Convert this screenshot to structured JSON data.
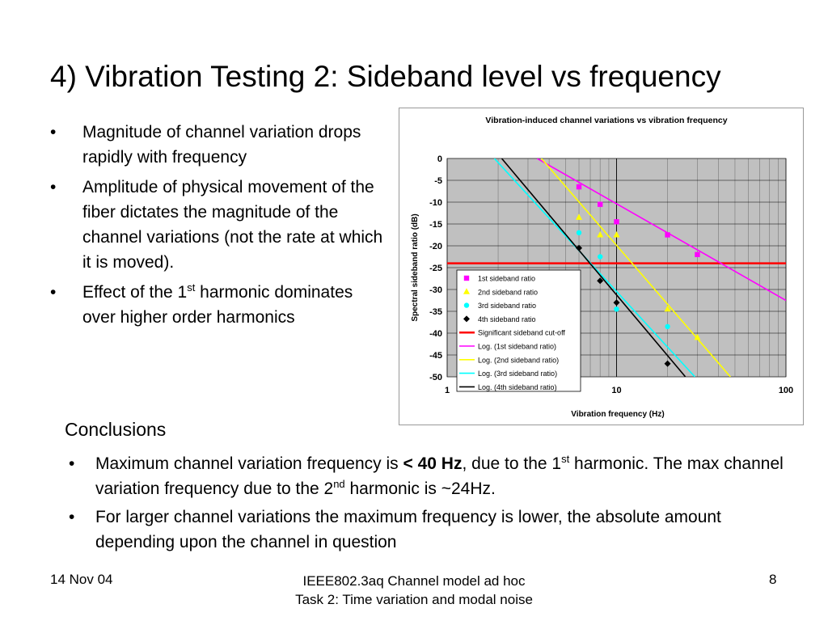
{
  "title": "4) Vibration Testing 2: Sideband level vs frequency",
  "bullets": [
    {
      "text": "Magnitude of channel variation drops rapidly with frequency"
    },
    {
      "text": "Amplitude of physical movement of the fiber dictates the magnitude of the channel variations (not the rate at which it is moved)."
    },
    {
      "pre": "Effect of the 1",
      "sup": "st",
      "post": "  harmonic dominates over higher order harmonics"
    }
  ],
  "bullet_glyph": "•",
  "conclusions": {
    "heading": "Conclusions",
    "items": [
      {
        "a": "Maximum channel variation frequency is ",
        "bold": "< 40 Hz",
        "b": ", due to the 1",
        "sup1": "st",
        "c": " harmonic. The max channel variation frequency due to the 2",
        "sup2": "nd",
        "d": " harmonic is ~24Hz."
      },
      {
        "a": "For larger channel variations the maximum frequency is lower, the absolute amount depending upon the channel in question"
      }
    ]
  },
  "footer": {
    "date": "14 Nov 04",
    "line1": "IEEE802.3aq Channel model ad hoc",
    "line2": "Task 2: Time variation and modal noise",
    "page": "8"
  },
  "chart_data": {
    "type": "scatter",
    "title": "Vibration-induced channel variations vs vibration frequency",
    "xlabel": "Vibration frequency (Hz)",
    "ylabel": "Spectral sideband ratio (dB)",
    "xscale": "log",
    "xlim": [
      1,
      100
    ],
    "ylim": [
      -50,
      0
    ],
    "xticks": [
      "1",
      "10",
      "100"
    ],
    "yticks": [
      "0",
      "-5",
      "-10",
      "-15",
      "-20",
      "-25",
      "-30",
      "-35",
      "-40",
      "-45",
      "-50"
    ],
    "grid": true,
    "legend_position": "bottom-left inside",
    "series": [
      {
        "name": "1st sideband ratio",
        "marker": "square",
        "color": "#ff00ff",
        "points": [
          [
            6,
            -6.5
          ],
          [
            8,
            -10.5
          ],
          [
            10,
            -14.5
          ],
          [
            20,
            -17.5
          ],
          [
            30,
            -22
          ]
        ]
      },
      {
        "name": "2nd sideband ratio",
        "marker": "triangle",
        "color": "#ffff00",
        "points": [
          [
            6,
            -13.5
          ],
          [
            8,
            -17.5
          ],
          [
            10,
            -17.5
          ],
          [
            20,
            -34.5
          ],
          [
            30,
            -41
          ]
        ]
      },
      {
        "name": "3rd sideband ratio",
        "marker": "circle",
        "color": "#00ffff",
        "points": [
          [
            6,
            -17
          ],
          [
            8,
            -22.5
          ],
          [
            10,
            -34.5
          ],
          [
            20,
            -38.5
          ]
        ]
      },
      {
        "name": "4th sideband ratio",
        "marker": "diamond",
        "color": "#000000",
        "points": [
          [
            6,
            -20.5
          ],
          [
            8,
            -28
          ],
          [
            10,
            -33
          ],
          [
            20,
            -47
          ]
        ]
      },
      {
        "name": "Significant sideband cut-off",
        "line": "horizontal",
        "color": "#ff0000",
        "y": -24
      }
    ],
    "trendlines": [
      {
        "name": "Log. (1st sideband ratio)",
        "color": "#ff00ff",
        "from": [
          3.4,
          0
        ],
        "to": [
          100,
          -32.5
        ]
      },
      {
        "name": "Log. (2nd sideband ratio)",
        "color": "#ffff00",
        "from": [
          3.6,
          0
        ],
        "to": [
          47,
          -50
        ]
      },
      {
        "name": "Log. (3rd sideband ratio)",
        "color": "#00ffff",
        "from": [
          1.9,
          0
        ],
        "to": [
          29,
          -50
        ]
      },
      {
        "name": "Log. (4th sideband ratio)",
        "color": "#000000",
        "from": [
          2.1,
          0
        ],
        "to": [
          25.5,
          -50
        ]
      }
    ]
  }
}
